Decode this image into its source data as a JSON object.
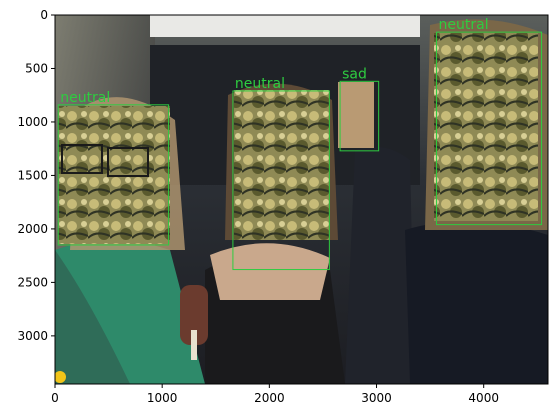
{
  "chart_data": {
    "type": "image",
    "title": "",
    "xlabel": "",
    "ylabel": "",
    "xlim": [
      0,
      4600
    ],
    "ylim": [
      3450,
      0
    ],
    "xticks": [
      0,
      1000,
      2000,
      3000,
      4000
    ],
    "yticks": [
      0,
      500,
      1000,
      1500,
      2000,
      2500,
      3000
    ],
    "box_color": "#2ecc40",
    "detections": [
      {
        "label": "neutral",
        "x0": 30,
        "y0": 840,
        "x1": 1060,
        "y1": 2150
      },
      {
        "label": "neutral",
        "x0": 1660,
        "y0": 710,
        "x1": 2560,
        "y1": 2380
      },
      {
        "label": "sad",
        "x0": 2660,
        "y0": 620,
        "x1": 3020,
        "y1": 1270
      },
      {
        "label": "neutral",
        "x0": 3560,
        "y0": 160,
        "x1": 4540,
        "y1": 1960
      }
    ]
  }
}
